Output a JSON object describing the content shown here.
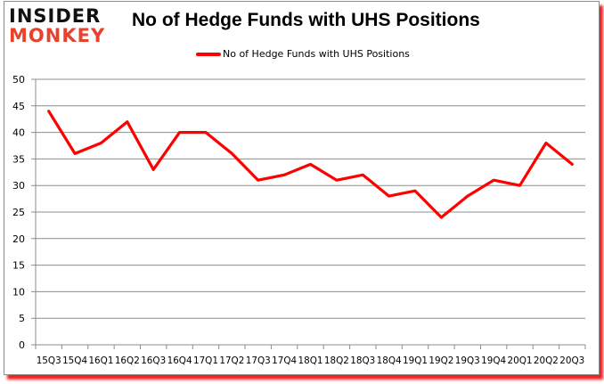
{
  "logo": {
    "line1": "INSIDER",
    "line2": "MONKEY"
  },
  "chart_data": {
    "type": "line",
    "title": "No of Hedge Funds with UHS Positions",
    "xlabel": "",
    "ylabel": "",
    "ylim": [
      0,
      50
    ],
    "yticks": [
      0,
      5,
      10,
      15,
      20,
      25,
      30,
      35,
      40,
      45,
      50
    ],
    "grid": true,
    "legend_position": "top",
    "categories": [
      "15Q3",
      "15Q4",
      "16Q1",
      "16Q2",
      "16Q3",
      "16Q4",
      "17Q1",
      "17Q2",
      "17Q3",
      "17Q4",
      "18Q1",
      "18Q2",
      "18Q3",
      "18Q4",
      "19Q1",
      "19Q2",
      "19Q3",
      "19Q4",
      "20Q1",
      "20Q2",
      "20Q3"
    ],
    "series": [
      {
        "name": "No of Hedge Funds with UHS Positions",
        "color": "#ff0000",
        "values": [
          44,
          36,
          38,
          42,
          33,
          40,
          40,
          36,
          31,
          32,
          34,
          31,
          32,
          28,
          29,
          24,
          28,
          31,
          30,
          38,
          34
        ]
      }
    ]
  },
  "colors": {
    "line": "#ff0000",
    "grid": "#8c8c8c",
    "shadow": "#f21e1e",
    "logo_dark": "#111111",
    "logo_red": "#e8412c"
  }
}
